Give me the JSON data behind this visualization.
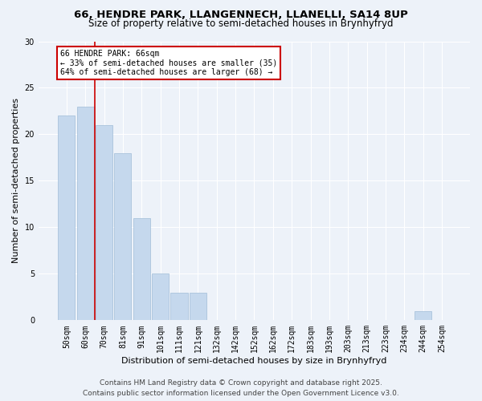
{
  "title1": "66, HENDRE PARK, LLANGENNECH, LLANELLI, SA14 8UP",
  "title2": "Size of property relative to semi-detached houses in Brynhyfryd",
  "xlabel": "Distribution of semi-detached houses by size in Brynhyfryd",
  "ylabel": "Number of semi-detached properties",
  "categories": [
    "50sqm",
    "60sqm",
    "70sqm",
    "81sqm",
    "91sqm",
    "101sqm",
    "111sqm",
    "121sqm",
    "132sqm",
    "142sqm",
    "152sqm",
    "162sqm",
    "172sqm",
    "183sqm",
    "193sqm",
    "203sqm",
    "213sqm",
    "223sqm",
    "234sqm",
    "244sqm",
    "254sqm"
  ],
  "values": [
    22,
    23,
    21,
    18,
    11,
    5,
    3,
    3,
    0,
    0,
    0,
    0,
    0,
    0,
    0,
    0,
    0,
    0,
    0,
    1,
    0
  ],
  "bar_color": "#c5d8ed",
  "bar_edge_color": "#a0bcd8",
  "red_line_x": 1.5,
  "annotation_title": "66 HENDRE PARK: 66sqm",
  "annotation_line1": "← 33% of semi-detached houses are smaller (35)",
  "annotation_line2": "64% of semi-detached houses are larger (68) →",
  "annotation_box_color": "#ffffff",
  "annotation_box_edge_color": "#cc0000",
  "red_line_color": "#cc0000",
  "ylim": [
    0,
    30
  ],
  "yticks": [
    0,
    5,
    10,
    15,
    20,
    25,
    30
  ],
  "footer1": "Contains HM Land Registry data © Crown copyright and database right 2025.",
  "footer2": "Contains public sector information licensed under the Open Government Licence v3.0.",
  "background_color": "#edf2f9",
  "plot_bg_color": "#edf2f9",
  "title_fontsize": 9.5,
  "subtitle_fontsize": 8.5,
  "axis_label_fontsize": 8,
  "tick_fontsize": 7,
  "annotation_fontsize": 7,
  "footer_fontsize": 6.5
}
